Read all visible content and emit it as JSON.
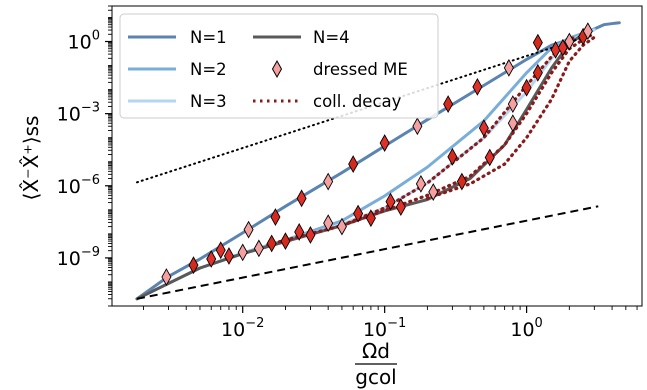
{
  "chart_data": {
    "type": "line",
    "xscale": "log",
    "yscale": "log",
    "xlim": [
      0.0012,
      6.5
    ],
    "ylim": [
      1e-11,
      30
    ],
    "xticks": [
      {
        "value": 0.01,
        "base": "10",
        "exp": "−2"
      },
      {
        "value": 0.1,
        "base": "10",
        "exp": "−1"
      },
      {
        "value": 1,
        "base": "10",
        "exp": "0"
      }
    ],
    "yticks": [
      {
        "value": 1e-09,
        "base": "10",
        "exp": "−9"
      },
      {
        "value": 1e-06,
        "base": "10",
        "exp": "−6"
      },
      {
        "value": 0.001,
        "base": "10",
        "exp": "−3"
      },
      {
        "value": 1,
        "base": "10",
        "exp": "0"
      }
    ],
    "ylabel": "⟨X̂⁻X̂⁺⟩ss",
    "xlabel_num": "Ωd",
    "xlabel_den": "gcol",
    "legend_position": "upper-left",
    "series": [
      {
        "name": "N=1",
        "kind": "line",
        "color": "#5b84b1",
        "points": [
          [
            0.0018,
            2e-11
          ],
          [
            0.003,
            1.7e-10
          ],
          [
            0.005,
            9e-10
          ],
          [
            0.01,
            1.1e-08
          ],
          [
            0.02,
            1.4e-07
          ],
          [
            0.05,
            3.5e-06
          ],
          [
            0.1,
            4.5e-05
          ],
          [
            0.2,
            0.00056
          ],
          [
            0.5,
            0.015
          ],
          [
            1.0,
            0.18
          ],
          [
            1.5,
            0.7
          ],
          [
            2.0,
            1.2
          ],
          [
            2.5,
            2.0
          ],
          [
            3.0,
            3.3
          ],
          [
            3.5,
            5.0
          ],
          [
            4.2,
            5.8
          ],
          [
            4.5,
            6.0
          ]
        ]
      },
      {
        "name": "N=2",
        "kind": "line",
        "color": "#7aaed8",
        "points": [
          [
            0.0018,
            2e-11
          ],
          [
            0.005,
            3.8e-10
          ],
          [
            0.01,
            1.6e-09
          ],
          [
            0.02,
            5.5e-09
          ],
          [
            0.05,
            3.5e-08
          ],
          [
            0.1,
            3.8e-07
          ],
          [
            0.2,
            6e-06
          ],
          [
            0.5,
            0.0005
          ],
          [
            1.0,
            0.05
          ],
          [
            1.5,
            0.55
          ],
          [
            2.0,
            1.4
          ],
          [
            2.5,
            2.2
          ],
          [
            3.0,
            3.3
          ]
        ]
      },
      {
        "name": "N=3",
        "kind": "line",
        "color": "#b4d6f2",
        "points": [
          [
            0.0018,
            2e-11
          ],
          [
            0.005,
            3.8e-10
          ],
          [
            0.01,
            1.5e-09
          ],
          [
            0.02,
            4.8e-09
          ],
          [
            0.05,
            2.5e-08
          ],
          [
            0.1,
            1.2e-07
          ],
          [
            0.2,
            1.3e-06
          ],
          [
            0.5,
            0.0001
          ],
          [
            1.0,
            0.008
          ],
          [
            1.5,
            0.2
          ],
          [
            2.0,
            1.0
          ],
          [
            2.5,
            2.0
          ],
          [
            3.0,
            3.0
          ]
        ]
      },
      {
        "name": "N=4",
        "kind": "line",
        "color": "#595959",
        "points": [
          [
            0.0018,
            2e-11
          ],
          [
            0.005,
            3.8e-10
          ],
          [
            0.01,
            1.5e-09
          ],
          [
            0.02,
            4.8e-09
          ],
          [
            0.05,
            2.2e-08
          ],
          [
            0.1,
            9e-08
          ],
          [
            0.2,
            2.7e-07
          ],
          [
            0.4,
            2e-06
          ],
          [
            0.7,
            5e-05
          ],
          [
            1.0,
            0.0015
          ],
          [
            1.5,
            0.08
          ],
          [
            2.0,
            0.8
          ],
          [
            2.5,
            2.0
          ]
        ]
      },
      {
        "name": "dressed ME",
        "kind": "marker",
        "color": "#f4a0a0",
        "stroke": "#000000",
        "points": [
          [
            0.0029,
            1.6e-10
          ],
          [
            0.0045,
            5e-10
          ],
          [
            0.007,
            2.1e-09
          ],
          [
            0.011,
            1.5e-08
          ],
          [
            0.017,
            5e-08
          ],
          [
            0.026,
            3e-07
          ],
          [
            0.04,
            1.5e-06
          ],
          [
            0.06,
            8e-06
          ],
          [
            0.1,
            6e-05
          ],
          [
            0.17,
            0.0003
          ],
          [
            0.28,
            0.0025
          ],
          [
            0.45,
            0.013
          ],
          [
            0.75,
            0.08
          ],
          [
            1.2,
            0.9
          ],
          [
            0.006,
            9e-10
          ],
          [
            0.01,
            1.7e-09
          ],
          [
            0.016,
            4e-09
          ],
          [
            0.025,
            1.2e-08
          ],
          [
            0.04,
            2.8e-08
          ],
          [
            0.065,
            7e-08
          ],
          [
            0.11,
            2.2e-07
          ],
          [
            0.18,
            1.2e-06
          ],
          [
            0.3,
            1.6e-05
          ],
          [
            0.5,
            0.00025
          ],
          [
            0.8,
            0.0025
          ],
          [
            1.2,
            0.05
          ],
          [
            1.6,
            0.45
          ],
          [
            2.0,
            1.0
          ],
          [
            2.5,
            1.6
          ],
          [
            0.008,
            1.2e-09
          ],
          [
            0.013,
            2.5e-09
          ],
          [
            0.02,
            5e-09
          ],
          [
            0.03,
            9e-09
          ],
          [
            0.05,
            2e-08
          ],
          [
            0.08,
            4.5e-08
          ],
          [
            0.13,
            1.3e-07
          ],
          [
            0.22,
            5.5e-07
          ],
          [
            0.35,
            1.5e-06
          ],
          [
            0.55,
            1.5e-05
          ],
          [
            0.8,
            0.0004
          ],
          [
            1.0,
            0.012
          ],
          [
            1.8,
            0.55
          ],
          [
            2.7,
            2.7
          ]
        ]
      },
      {
        "name": "coll. decay",
        "kind": "dotted",
        "color": "#8b1a1a",
        "points": [
          [
            0.015,
            3.5e-09
          ],
          [
            0.05,
            2.2e-08
          ],
          [
            0.1,
            1.2e-07
          ],
          [
            0.2,
            1.3e-06
          ],
          [
            0.5,
            0.0001
          ],
          [
            1.0,
            0.015
          ],
          [
            1.8,
            0.8
          ],
          [
            2.2,
            1.6
          ]
        ]
      },
      {
        "name": "coll. decay 2",
        "kind": "dotted-unlabeled",
        "color": "#8b1a1a",
        "points": [
          [
            0.05,
            2.2e-08
          ],
          [
            0.2,
            4e-07
          ],
          [
            0.4,
            2.5e-06
          ],
          [
            0.7,
            5e-05
          ],
          [
            1.0,
            0.001
          ],
          [
            1.5,
            0.05
          ],
          [
            2.0,
            0.5
          ],
          [
            2.5,
            1.2
          ],
          [
            3.0,
            2.2
          ]
        ]
      },
      {
        "name": "coll. decay 3",
        "kind": "dotted-unlabeled",
        "color": "#8b1a1a",
        "points": [
          [
            0.2,
            3e-07
          ],
          [
            0.4,
            1.2e-06
          ],
          [
            0.7,
            8e-06
          ],
          [
            1.0,
            0.0001
          ],
          [
            1.5,
            0.004
          ],
          [
            2.0,
            0.15
          ],
          [
            2.5,
            0.7
          ],
          [
            3.0,
            1.5
          ]
        ]
      },
      {
        "name": "ref-high",
        "kind": "reference-dotted",
        "color": "#000000",
        "points": [
          [
            0.0018,
            1.4e-06
          ],
          [
            2.8,
            1.8
          ]
        ]
      },
      {
        "name": "ref-low",
        "kind": "reference-dashed",
        "color": "#000000",
        "points": [
          [
            0.0018,
            2e-11
          ],
          [
            3.2,
            1.4e-07
          ]
        ]
      }
    ]
  },
  "legend": {
    "col1": [
      {
        "label": "N=1",
        "style": "line",
        "color": "#5b84b1"
      },
      {
        "label": "N=2",
        "style": "line",
        "color": "#7aaed8"
      },
      {
        "label": "N=3",
        "style": "line",
        "color": "#b4d6f2"
      }
    ],
    "col2": [
      {
        "label": "N=4",
        "style": "line",
        "color": "#595959"
      },
      {
        "label": "dressed ME",
        "style": "marker",
        "color": "#f4a0a0"
      },
      {
        "label": "coll. decay",
        "style": "dotted",
        "color": "#8b1a1a"
      }
    ]
  }
}
